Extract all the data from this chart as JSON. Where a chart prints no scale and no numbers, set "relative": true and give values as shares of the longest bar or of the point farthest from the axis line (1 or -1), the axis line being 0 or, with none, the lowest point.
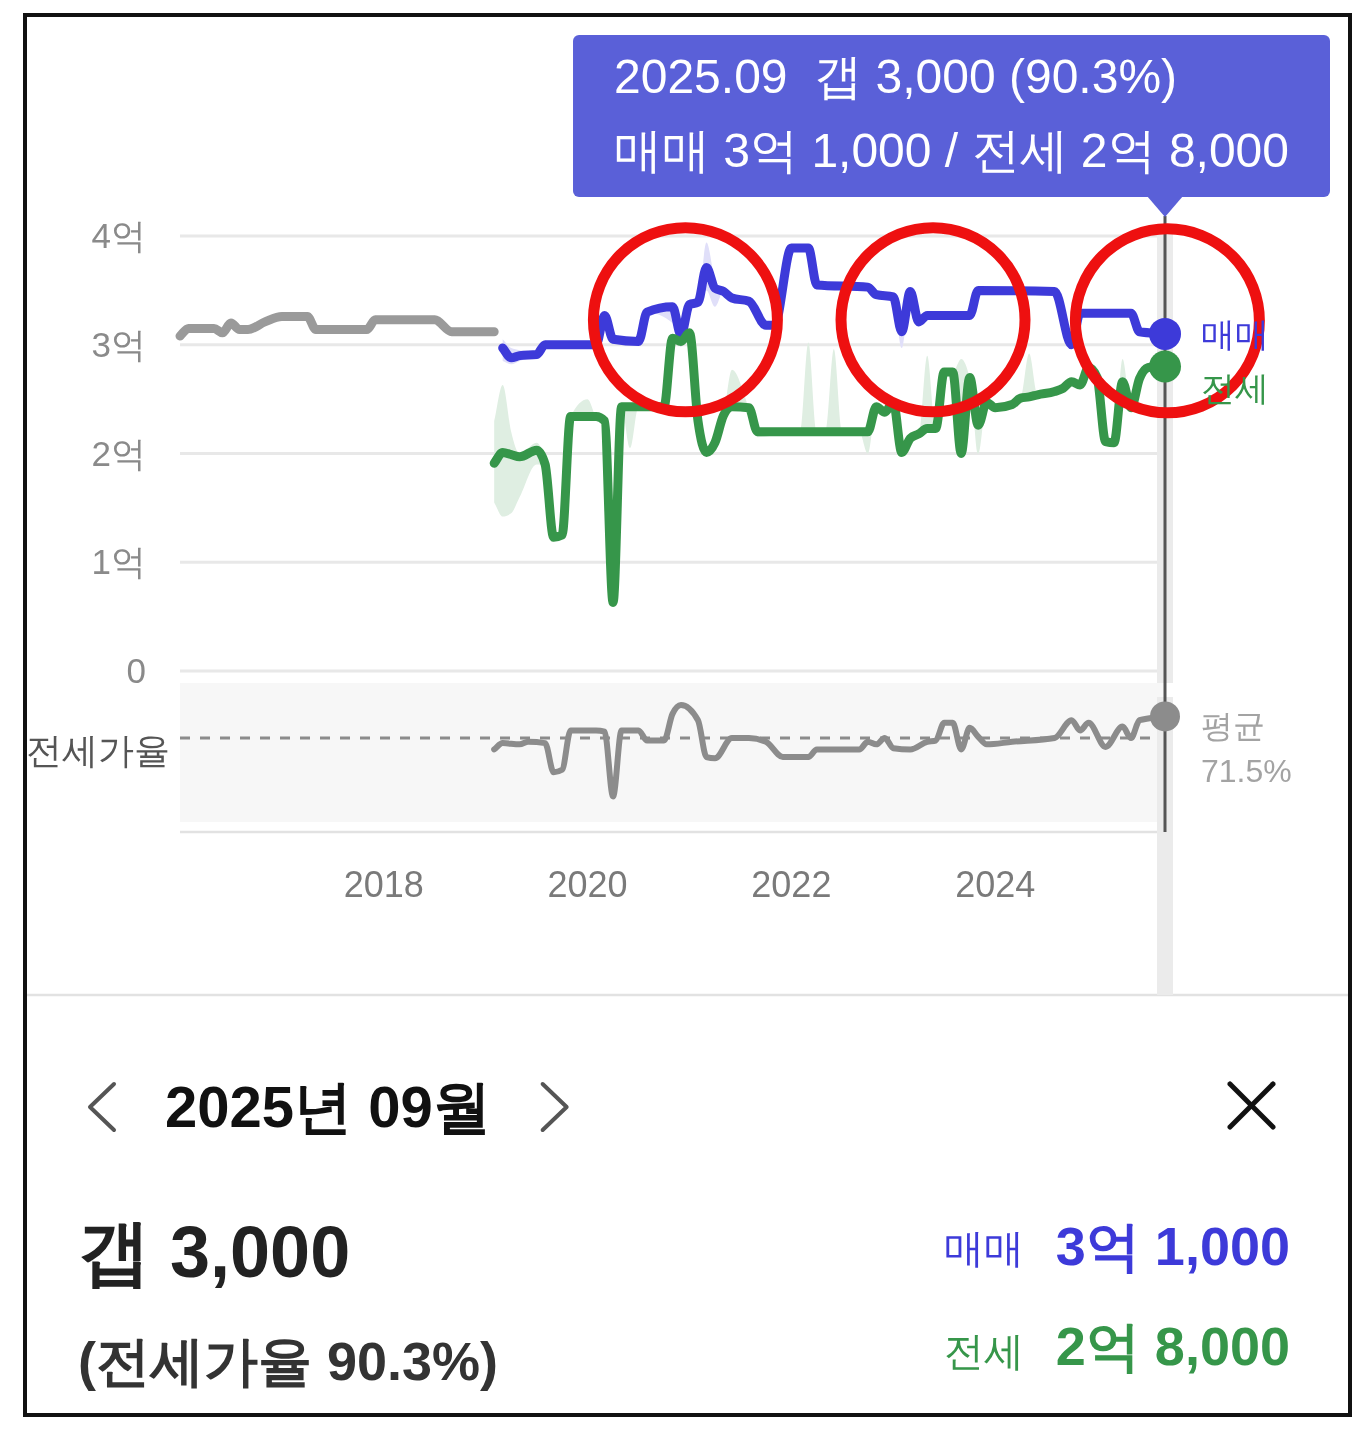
{
  "chart_data": [
    {
      "type": "line",
      "xlim": [
        "2016-01",
        "2025-09"
      ],
      "ylim": [
        0,
        4
      ],
      "yticks": [
        0,
        {
          "value": 1,
          "label": "1억"
        },
        {
          "value": 2,
          "label": "2억"
        },
        {
          "value": 3,
          "label": "3억"
        },
        {
          "value": 4,
          "label": "4억"
        }
      ],
      "grid": "y",
      "tick_labels": "y",
      "series": [
        {
          "color": "#9a9a9a",
          "x": [
            "2016-01",
            "2016-02",
            "2016-05",
            "2016-06",
            "2016-07",
            "2016-08",
            "2016-09",
            "2016-11",
            "2017-01",
            "2017-04",
            "2017-05",
            "2017-11",
            "2017-12",
            "2018-07",
            "2018-09",
            "2019-02"
          ],
          "values": [
            3.08,
            3.15,
            3.15,
            3.11,
            3.2,
            3.14,
            3.14,
            3.21,
            3.26,
            3.26,
            3.14,
            3.14,
            3.23,
            3.23,
            3.12,
            3.12
          ]
        },
        {
          "name": "매매",
          "color": "#3d3ad9",
          "x": [
            "2019-03",
            "2019-04",
            "2019-05",
            "2019-07",
            "2019-08",
            "2020-02",
            "2020-03",
            "2020-04",
            "2020-07",
            "2020-08",
            "2020-11",
            "2020-12",
            "2021-01",
            "2021-02",
            "2021-03",
            "2021-04",
            "2021-05",
            "2021-06",
            "2021-08",
            "2021-10",
            "2021-11",
            "2022-01",
            "2022-03",
            "2022-04",
            "2022-10",
            "2022-11",
            "2023-01",
            "2023-02",
            "2023-03",
            "2023-04",
            "2023-05",
            "2023-10",
            "2023-11",
            "2024-08",
            "2024-10",
            "2024-11",
            "2025-05",
            "2025-06",
            "2025-09"
          ],
          "values": [
            2.97,
            2.88,
            2.9,
            2.91,
            3.0,
            3.0,
            3.27,
            3.05,
            3.03,
            3.3,
            3.35,
            3.09,
            3.37,
            3.39,
            3.71,
            3.52,
            3.49,
            3.43,
            3.4,
            3.18,
            3.18,
            3.89,
            3.89,
            3.55,
            3.53,
            3.46,
            3.44,
            3.12,
            3.49,
            3.21,
            3.27,
            3.27,
            3.5,
            3.49,
            3.0,
            3.29,
            3.29,
            3.12,
            3.1
          ],
          "lower": [
            2.85,
            2.82,
            2.85,
            2.91,
            3.0,
            3.0,
            3.27,
            3.05,
            3.03,
            3.3,
            3.2,
            2.98,
            3.37,
            3.39,
            3.5,
            3.35,
            3.49,
            3.43,
            3.4,
            3.18,
            3.18,
            3.89,
            3.89,
            3.55,
            3.53,
            3.46,
            3.44,
            2.97,
            3.49,
            3.21,
            3.27,
            3.27,
            3.5,
            3.49,
            3.0,
            3.29,
            3.29,
            3.12,
            3.1
          ],
          "upper": [
            3.05,
            2.97,
            2.95,
            2.91,
            3.0,
            3.0,
            3.27,
            3.05,
            3.03,
            3.3,
            3.35,
            3.09,
            3.37,
            3.39,
            3.94,
            3.6,
            3.49,
            3.43,
            3.4,
            3.18,
            3.18,
            3.89,
            3.89,
            3.55,
            3.53,
            3.46,
            3.44,
            3.12,
            3.49,
            3.21,
            3.27,
            3.27,
            3.5,
            3.49,
            3.0,
            3.29,
            3.29,
            3.12,
            3.1
          ]
        },
        {
          "name": "전세",
          "color": "#36964a",
          "x": [
            "2019-02",
            "2019-03",
            "2019-04",
            "2019-05",
            "2019-07",
            "2019-08",
            "2019-09",
            "2019-10",
            "2019-11",
            "2020-01",
            "2020-02",
            "2020-03",
            "2020-04",
            "2020-05",
            "2020-06",
            "2020-07",
            "2020-10",
            "2020-11",
            "2020-12",
            "2021-01",
            "2021-02",
            "2021-03",
            "2021-04",
            "2021-05",
            "2021-06",
            "2021-08",
            "2021-09",
            "2022-02",
            "2022-03",
            "2022-04",
            "2022-05",
            "2022-06",
            "2022-07",
            "2022-09",
            "2022-10",
            "2022-11",
            "2022-12",
            "2023-01",
            "2023-02",
            "2023-03",
            "2023-04",
            "2023-05",
            "2023-06",
            "2023-07",
            "2023-08",
            "2023-09",
            "2023-10",
            "2023-11",
            "2023-12",
            "2024-01",
            "2024-03",
            "2024-04",
            "2024-05",
            "2024-06",
            "2024-08",
            "2024-09",
            "2024-10",
            "2024-11",
            "2024-12",
            "2025-01",
            "2025-02",
            "2025-03",
            "2025-04",
            "2025-05",
            "2025-06",
            "2025-07",
            "2025-08",
            "2025-09"
          ],
          "values": [
            1.91,
            2.01,
            1.99,
            1.97,
            2.03,
            1.9,
            1.23,
            1.25,
            2.34,
            2.34,
            2.34,
            2.3,
            0.63,
            2.43,
            2.43,
            2.43,
            2.43,
            3.06,
            3.03,
            3.11,
            2.3,
            2.01,
            2.1,
            2.35,
            2.43,
            2.42,
            2.2,
            2.2,
            2.2,
            2.2,
            2.2,
            2.2,
            2.2,
            2.2,
            2.2,
            2.43,
            2.38,
            2.47,
            2.01,
            2.14,
            2.18,
            2.23,
            2.23,
            2.75,
            2.75,
            2.0,
            2.7,
            2.26,
            2.47,
            2.42,
            2.45,
            2.51,
            2.52,
            2.54,
            2.57,
            2.6,
            2.66,
            2.63,
            2.79,
            2.7,
            2.11,
            2.1,
            2.66,
            2.42,
            2.69,
            2.79,
            2.8,
            2.8
          ],
          "lower": [
            1.55,
            1.42,
            1.45,
            1.6,
            1.9,
            1.9,
            1.23,
            1.25,
            2.34,
            2.34,
            2.34,
            2.3,
            0.63,
            2.43,
            2.05,
            2.43,
            2.43,
            3.06,
            3.03,
            3.11,
            2.3,
            2.01,
            2.1,
            2.35,
            2.43,
            2.42,
            2.15,
            2.2,
            2.2,
            2.2,
            2.2,
            2.2,
            2.2,
            2.2,
            2.0,
            2.43,
            2.38,
            2.47,
            2.01,
            2.14,
            2.18,
            2.23,
            2.23,
            2.75,
            2.75,
            2.0,
            2.7,
            2.0,
            2.47,
            2.42,
            2.45,
            2.51,
            2.52,
            2.54,
            2.57,
            2.6,
            2.66,
            2.63,
            2.79,
            2.7,
            2.11,
            2.1,
            2.66,
            2.42,
            2.69,
            2.79,
            2.8,
            2.8
          ],
          "upper": [
            2.3,
            2.63,
            2.2,
            2.0,
            2.1,
            1.9,
            1.23,
            1.25,
            2.34,
            2.5,
            2.34,
            2.3,
            0.63,
            2.43,
            2.43,
            2.43,
            2.43,
            3.06,
            3.03,
            3.11,
            2.3,
            2.01,
            2.1,
            2.35,
            2.77,
            2.42,
            2.2,
            2.2,
            3.02,
            2.2,
            2.2,
            2.96,
            2.2,
            2.2,
            2.2,
            2.43,
            2.38,
            2.47,
            2.01,
            2.14,
            2.18,
            2.9,
            2.23,
            2.75,
            2.75,
            2.87,
            2.7,
            2.26,
            2.47,
            2.42,
            2.45,
            2.51,
            2.92,
            2.54,
            2.57,
            2.6,
            2.66,
            2.63,
            2.79,
            2.7,
            2.11,
            2.1,
            2.87,
            2.42,
            2.69,
            2.79,
            2.8,
            2.8
          ]
        },
        {
          "type": "scatter",
          "color": "#3d3ad9",
          "x": [
            "2025-09"
          ],
          "values": [
            3.1
          ]
        },
        {
          "type": "scatter",
          "color": "#36964a",
          "x": [
            "2025-09"
          ],
          "values": [
            2.8
          ]
        }
      ],
      "ref_lines": [
        {
          "axis": "x",
          "value": "2025-09",
          "color": "#555555"
        }
      ],
      "annotations": [
        "2025.09  갭 3,000 (90.3%)",
        "매매 3억 1,000 / 전세 2억 8,000"
      ]
    },
    {
      "type": "line",
      "relative": true,
      "ylabel": "전세가율",
      "xlim": [
        "2016-01",
        "2025-09"
      ],
      "xticks": [
        "2018",
        "2020",
        "2022",
        "2024"
      ],
      "tick_labels": "x",
      "series": [
        {
          "color": "#8c8c8c",
          "x": [
            "2019-02",
            "2019-03",
            "2019-05",
            "2019-06",
            "2019-08",
            "2019-09",
            "2019-10",
            "2019-11",
            "2020-02",
            "2020-03",
            "2020-04",
            "2020-05",
            "2020-07",
            "2020-08",
            "2020-10",
            "2020-11",
            "2020-12",
            "2021-02",
            "2021-03",
            "2021-04",
            "2021-06",
            "2021-08",
            "2021-10",
            "2021-12",
            "2022-03",
            "2022-04",
            "2022-09",
            "2022-10",
            "2022-11",
            "2022-12",
            "2023-01",
            "2023-03",
            "2023-05",
            "2023-06",
            "2023-07",
            "2023-08",
            "2023-09",
            "2023-10",
            "2023-11",
            "2023-12",
            "2024-03",
            "2024-08",
            "2024-10",
            "2024-11",
            "2024-12",
            "2025-02",
            "2025-04",
            "2025-05",
            "2025-06",
            "2025-09"
          ],
          "values": [
            0.65,
            0.7,
            0.69,
            0.71,
            0.7,
            0.47,
            0.49,
            0.8,
            0.8,
            0.79,
            0.28,
            0.8,
            0.8,
            0.72,
            0.72,
            0.93,
            1,
            0.88,
            0.59,
            0.58,
            0.74,
            0.74,
            0.71,
            0.59,
            0.59,
            0.65,
            0.65,
            0.71,
            0.69,
            0.74,
            0.66,
            0.65,
            0.71,
            0.72,
            0.86,
            0.86,
            0.65,
            0.82,
            0.75,
            0.69,
            0.71,
            0.74,
            0.88,
            0.8,
            0.86,
            0.67,
            0.83,
            0.74,
            0.88,
            0.91
          ]
        },
        {
          "type": "scatter",
          "color": "#8c8c8c",
          "x": [
            "2025-09"
          ],
          "values": [
            0.91
          ]
        }
      ],
      "ref_lines": [
        {
          "axis": "y",
          "value": 0.74,
          "label": "평균 71.5%",
          "line_style": "dashed",
          "color": "#8c8c8c"
        },
        {
          "axis": "x",
          "value": "2025-09",
          "color": "#555555"
        }
      ]
    },
    {
      "type": "other",
      "title": "2025년 09월",
      "annotations": [
        "갭 3,000",
        "(전세가율 90.3%)",
        "매매",
        "3억 1,000",
        "전세",
        "2억 8,000"
      ]
    }
  ]
}
